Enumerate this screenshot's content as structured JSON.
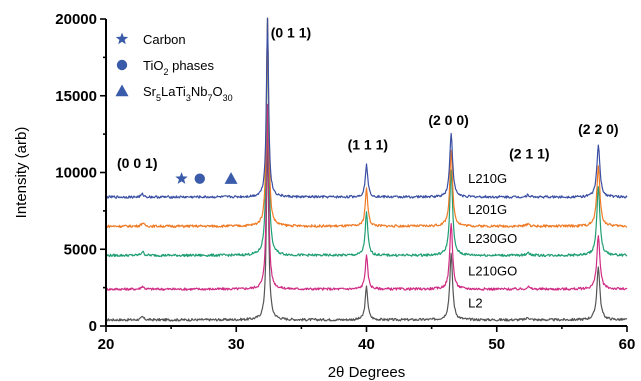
{
  "chart_data": {
    "type": "line",
    "title": "",
    "xlabel": "2θ Degrees",
    "ylabel": "Intensity (arb)",
    "xlim": [
      20,
      60
    ],
    "ylim": [
      0,
      20000
    ],
    "x_ticks": [
      20,
      30,
      40,
      50,
      60
    ],
    "y_ticks": [
      0,
      5000,
      10000,
      15000,
      20000
    ],
    "x_tick_labels": [
      "20",
      "30",
      "40",
      "50",
      "60"
    ],
    "y_tick_labels": [
      "0",
      "5000",
      "10000",
      "15000",
      "20000"
    ],
    "grid": false,
    "legend": {
      "placement": "top-left",
      "entries": [
        {
          "marker": "star",
          "label": "Carbon"
        },
        {
          "marker": "circle",
          "label_main": "TiO",
          "label_sub": "2",
          "label_rest": " phases"
        },
        {
          "marker": "triangle",
          "label_parts": [
            {
              "t": "Sr",
              "s": false
            },
            {
              "t": "5",
              "s": true
            },
            {
              "t": "LaTi",
              "s": false
            },
            {
              "t": "3",
              "s": true
            },
            {
              "t": "Nb",
              "s": false
            },
            {
              "t": "7",
              "s": true
            },
            {
              "t": "O",
              "s": false
            },
            {
              "t": "30",
              "s": true
            }
          ]
        }
      ]
    },
    "legend_color": "#3a5ba9",
    "phase_markers": [
      {
        "marker": "star",
        "x": 25.8,
        "y": 9600
      },
      {
        "marker": "circle",
        "x": 27.2,
        "y": 9600
      },
      {
        "marker": "triangle",
        "x": 29.6,
        "y": 9600
      }
    ],
    "peak_annotations": [
      {
        "label": "(0 0 1)",
        "x": 22.4,
        "y": 10300
      },
      {
        "label": "(0 1 1)",
        "x": 34.2,
        "y": 18800
      },
      {
        "label": "(1 1 1)",
        "x": 40.1,
        "y": 11500
      },
      {
        "label": "(2 0 0)",
        "x": 46.3,
        "y": 13100
      },
      {
        "label": "(2 1 1)",
        "x": 52.5,
        "y": 10900
      },
      {
        "label": "(2 2 0)",
        "x": 57.8,
        "y": 12500
      }
    ],
    "peaks": [
      {
        "center": 22.8,
        "rel": 0.016
      },
      {
        "center": 32.4,
        "rel": 1.0
      },
      {
        "center": 40.0,
        "rel": 0.18
      },
      {
        "center": 46.5,
        "rel": 0.36
      },
      {
        "center": 52.4,
        "rel": 0.014
      },
      {
        "center": 57.8,
        "rel": 0.29
      }
    ],
    "series": [
      {
        "name": "L2",
        "color": "#555555",
        "baseline": 400,
        "main_peak": 12300,
        "label_x": 47.8,
        "label_y": 1200
      },
      {
        "name": "L210GO",
        "color": "#d02c84",
        "baseline": 2400,
        "main_peak": 14400,
        "label_x": 47.8,
        "label_y": 3300
      },
      {
        "name": "L230GO",
        "color": "#1f9e73",
        "baseline": 4600,
        "main_peak": 20000,
        "label_x": 47.8,
        "label_y": 5400
      },
      {
        "name": "L201G",
        "color": "#f07a24",
        "baseline": 6500,
        "main_peak": 20000,
        "label_x": 47.8,
        "label_y": 7300
      },
      {
        "name": "L210G",
        "color": "#3a4fa3",
        "baseline": 8400,
        "main_peak": 20000,
        "label_x": 47.8,
        "label_y": 9300
      }
    ]
  }
}
